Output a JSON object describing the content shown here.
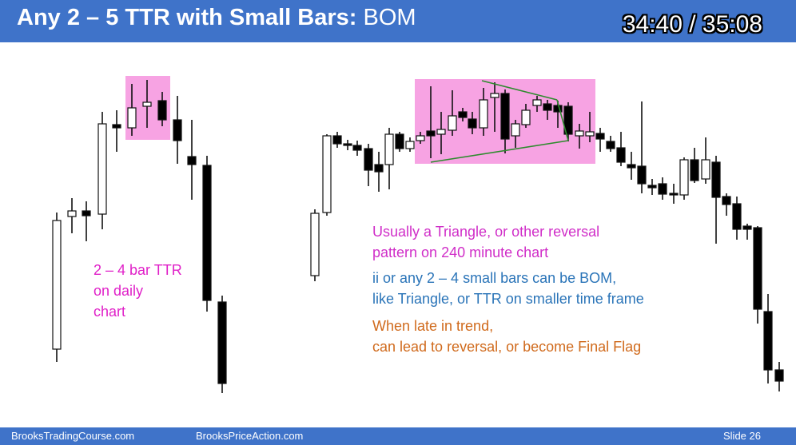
{
  "header": {
    "title_bold": "Any 2 – 5 TTR with Small Bars:",
    "title_rest": "BOM",
    "timer": "34:40 / 35:08"
  },
  "notes": {
    "left_lines": [
      "2 – 4 bar TTR",
      "on daily",
      "chart"
    ],
    "right_group1": [
      "Usually a Triangle, or other reversal",
      "pattern on 240 minute chart"
    ],
    "right_group2": [
      "ii or any 2 – 4 small bars can be BOM,",
      "like Triangle, or TTR on smaller time frame"
    ],
    "right_group3": [
      "When late in trend,",
      "can lead to reversal, or become Final Flag"
    ]
  },
  "footer": {
    "left": "BrooksTradingCourse.com",
    "middle": "BrooksPriceAction.com",
    "slide": "Slide  26"
  },
  "colors": {
    "header_bg": "#3f73c9",
    "highlight_box": "#f7a3e3",
    "triangle_line": "#2e8b2e",
    "bull_body": "#ffffff",
    "bear_body": "#000000"
  }
}
